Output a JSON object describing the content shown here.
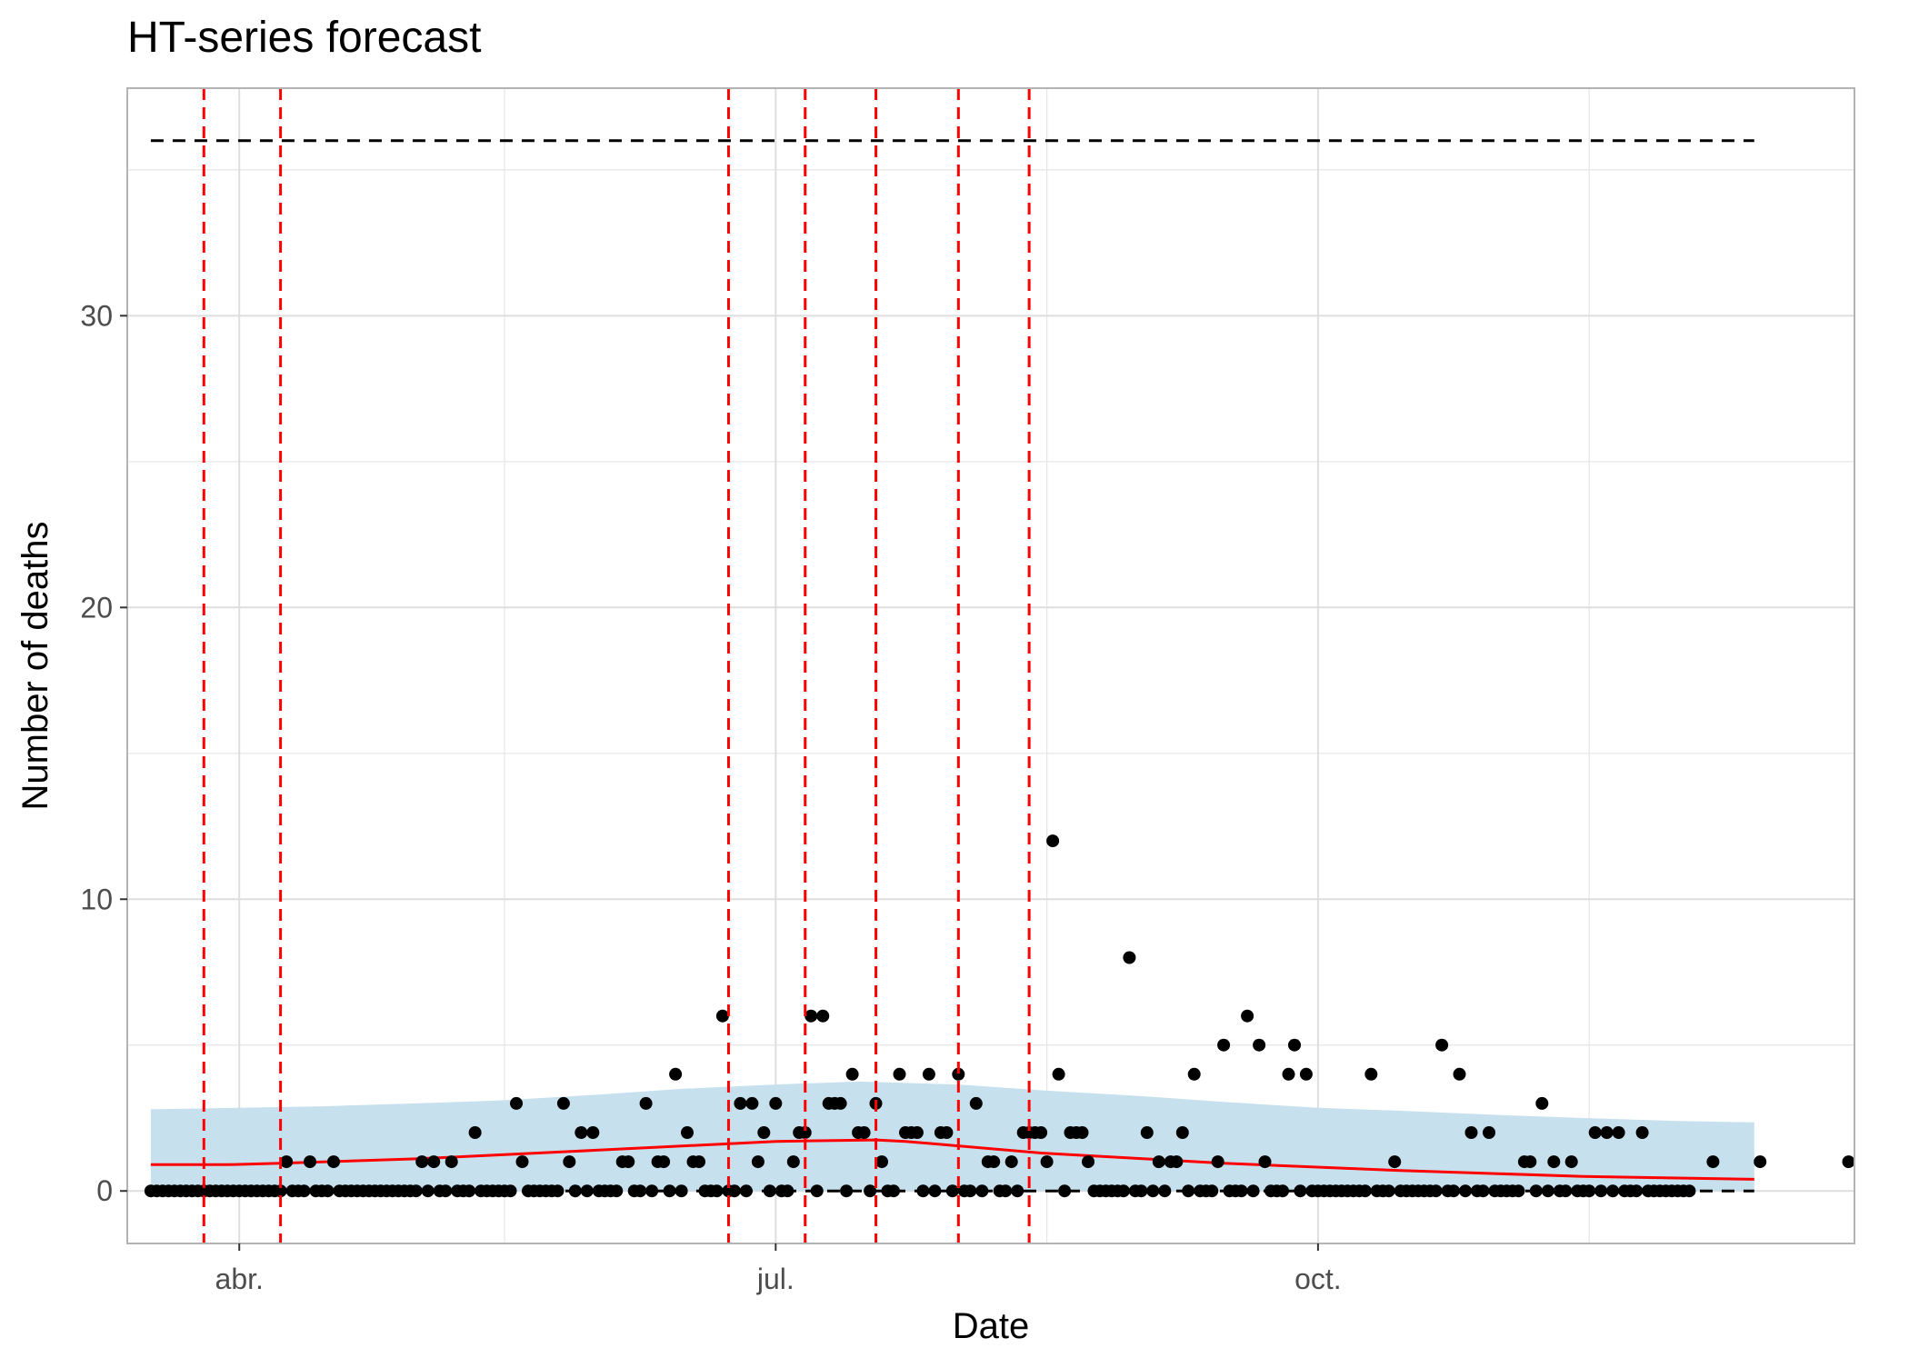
{
  "chart_data": {
    "type": "scatter",
    "title": "HT-series forecast",
    "xlabel": "Date",
    "ylabel": "Number of deaths",
    "x_tick_labels": [
      {
        "date": "2020-04-01",
        "label": "abr."
      },
      {
        "date": "2020-07-01",
        "label": "jul."
      },
      {
        "date": "2020-10-01",
        "label": "oct."
      }
    ],
    "y_ticks": [
      0,
      10,
      20,
      30
    ],
    "xlim": [
      "2020-03-13",
      "2020-12-31"
    ],
    "ylim": [
      -1.8,
      37.8
    ],
    "grid": true,
    "legend": "none",
    "colors": {
      "points": "#000000",
      "trend": "#ff0000",
      "band": "#c6e0ee",
      "event_lines": "#ff0000",
      "reference_lines": "#000000",
      "grid": "#e5e5e5",
      "panel_border": "#b3b3b3"
    },
    "reference_lines": [
      {
        "y": 36,
        "style": "dashed",
        "x_range": [
          "2020-03-17",
          "2020-12-14"
        ]
      },
      {
        "y": 0,
        "style": "dashed",
        "x_range": [
          "2020-03-17",
          "2020-12-14"
        ]
      }
    ],
    "event_lines": [
      "2020-03-26",
      "2020-04-08",
      "2020-06-23",
      "2020-07-06",
      "2020-07-18",
      "2020-08-01",
      "2020-08-13"
    ],
    "trend": {
      "x": [
        "2020-03-17",
        "2020-03-30",
        "2020-04-08",
        "2020-05-01",
        "2020-06-01",
        "2020-07-01",
        "2020-07-18",
        "2020-07-23",
        "2020-08-15",
        "2020-09-15",
        "2020-10-15",
        "2020-11-15",
        "2020-12-14"
      ],
      "y": [
        0.9,
        0.9,
        0.95,
        1.1,
        1.4,
        1.7,
        1.75,
        1.7,
        1.3,
        0.95,
        0.7,
        0.5,
        0.4
      ]
    },
    "band": {
      "x": [
        "2020-03-17",
        "2020-04-01",
        "2020-04-15",
        "2020-05-01",
        "2020-05-15",
        "2020-06-01",
        "2020-06-15",
        "2020-07-01",
        "2020-07-15",
        "2020-08-01",
        "2020-08-15",
        "2020-09-01",
        "2020-09-15",
        "2020-10-01",
        "2020-10-15",
        "2020-11-01",
        "2020-11-15",
        "2020-12-01",
        "2020-12-14"
      ],
      "upper": [
        2.8,
        2.85,
        2.9,
        3.0,
        3.1,
        3.3,
        3.5,
        3.65,
        3.75,
        3.65,
        3.45,
        3.25,
        3.05,
        2.85,
        2.75,
        2.6,
        2.5,
        2.4,
        2.35
      ],
      "lower": [
        0,
        0,
        0,
        0,
        0,
        0,
        0,
        0,
        0,
        0,
        0,
        0,
        0,
        0,
        0,
        0,
        0,
        0,
        0
      ]
    },
    "points_baseline": {
      "from": "2020-03-17",
      "to": "2020-12-03",
      "y": 0
    },
    "points": [
      {
        "x": "2020-04-09",
        "y": 1
      },
      {
        "x": "2020-04-13",
        "y": 1
      },
      {
        "x": "2020-04-17",
        "y": 1
      },
      {
        "x": "2020-05-02",
        "y": 1
      },
      {
        "x": "2020-05-04",
        "y": 1
      },
      {
        "x": "2020-05-07",
        "y": 1
      },
      {
        "x": "2020-05-11",
        "y": 2
      },
      {
        "x": "2020-05-18",
        "y": 3
      },
      {
        "x": "2020-05-19",
        "y": 1
      },
      {
        "x": "2020-05-26",
        "y": 3
      },
      {
        "x": "2020-05-27",
        "y": 1
      },
      {
        "x": "2020-05-29",
        "y": 2
      },
      {
        "x": "2020-05-31",
        "y": 2
      },
      {
        "x": "2020-06-05",
        "y": 1
      },
      {
        "x": "2020-06-06",
        "y": 1
      },
      {
        "x": "2020-06-09",
        "y": 3
      },
      {
        "x": "2020-06-11",
        "y": 1
      },
      {
        "x": "2020-06-12",
        "y": 1
      },
      {
        "x": "2020-06-14",
        "y": 4
      },
      {
        "x": "2020-06-16",
        "y": 2
      },
      {
        "x": "2020-06-17",
        "y": 1
      },
      {
        "x": "2020-06-18",
        "y": 1
      },
      {
        "x": "2020-06-22",
        "y": 6
      },
      {
        "x": "2020-06-25",
        "y": 3
      },
      {
        "x": "2020-06-27",
        "y": 3
      },
      {
        "x": "2020-06-28",
        "y": 1
      },
      {
        "x": "2020-06-29",
        "y": 2
      },
      {
        "x": "2020-07-01",
        "y": 3
      },
      {
        "x": "2020-07-04",
        "y": 1
      },
      {
        "x": "2020-07-05",
        "y": 2
      },
      {
        "x": "2020-07-06",
        "y": 2
      },
      {
        "x": "2020-07-07",
        "y": 6
      },
      {
        "x": "2020-07-09",
        "y": 6
      },
      {
        "x": "2020-07-10",
        "y": 3
      },
      {
        "x": "2020-07-11",
        "y": 3
      },
      {
        "x": "2020-07-12",
        "y": 3
      },
      {
        "x": "2020-07-14",
        "y": 4
      },
      {
        "x": "2020-07-15",
        "y": 2
      },
      {
        "x": "2020-07-16",
        "y": 2
      },
      {
        "x": "2020-07-18",
        "y": 3
      },
      {
        "x": "2020-07-19",
        "y": 1
      },
      {
        "x": "2020-07-22",
        "y": 4
      },
      {
        "x": "2020-07-23",
        "y": 2
      },
      {
        "x": "2020-07-24",
        "y": 2
      },
      {
        "x": "2020-07-25",
        "y": 2
      },
      {
        "x": "2020-07-27",
        "y": 4
      },
      {
        "x": "2020-07-29",
        "y": 2
      },
      {
        "x": "2020-07-30",
        "y": 2
      },
      {
        "x": "2020-08-01",
        "y": 4
      },
      {
        "x": "2020-08-04",
        "y": 3
      },
      {
        "x": "2020-08-06",
        "y": 1
      },
      {
        "x": "2020-08-07",
        "y": 1
      },
      {
        "x": "2020-08-10",
        "y": 1
      },
      {
        "x": "2020-08-12",
        "y": 2
      },
      {
        "x": "2020-08-13",
        "y": 2
      },
      {
        "x": "2020-08-14",
        "y": 2
      },
      {
        "x": "2020-08-15",
        "y": 2
      },
      {
        "x": "2020-08-16",
        "y": 1
      },
      {
        "x": "2020-08-17",
        "y": 12
      },
      {
        "x": "2020-08-18",
        "y": 4
      },
      {
        "x": "2020-08-20",
        "y": 2
      },
      {
        "x": "2020-08-21",
        "y": 2
      },
      {
        "x": "2020-08-22",
        "y": 2
      },
      {
        "x": "2020-08-23",
        "y": 1
      },
      {
        "x": "2020-08-30",
        "y": 8
      },
      {
        "x": "2020-09-02",
        "y": 2
      },
      {
        "x": "2020-09-04",
        "y": 1
      },
      {
        "x": "2020-09-06",
        "y": 1
      },
      {
        "x": "2020-09-07",
        "y": 1
      },
      {
        "x": "2020-09-08",
        "y": 2
      },
      {
        "x": "2020-09-10",
        "y": 4
      },
      {
        "x": "2020-09-14",
        "y": 1
      },
      {
        "x": "2020-09-15",
        "y": 5
      },
      {
        "x": "2020-09-19",
        "y": 6
      },
      {
        "x": "2020-09-21",
        "y": 5
      },
      {
        "x": "2020-09-22",
        "y": 1
      },
      {
        "x": "2020-09-26",
        "y": 4
      },
      {
        "x": "2020-09-27",
        "y": 5
      },
      {
        "x": "2020-09-29",
        "y": 4
      },
      {
        "x": "2020-10-10",
        "y": 4
      },
      {
        "x": "2020-10-14",
        "y": 1
      },
      {
        "x": "2020-10-22",
        "y": 5
      },
      {
        "x": "2020-10-25",
        "y": 4
      },
      {
        "x": "2020-10-27",
        "y": 2
      },
      {
        "x": "2020-10-30",
        "y": 2
      },
      {
        "x": "2020-11-05",
        "y": 1
      },
      {
        "x": "2020-11-06",
        "y": 1
      },
      {
        "x": "2020-11-08",
        "y": 3
      },
      {
        "x": "2020-11-10",
        "y": 1
      },
      {
        "x": "2020-11-13",
        "y": 1
      },
      {
        "x": "2020-11-17",
        "y": 2
      },
      {
        "x": "2020-11-19",
        "y": 2
      },
      {
        "x": "2020-11-21",
        "y": 2
      },
      {
        "x": "2020-11-25",
        "y": 2
      },
      {
        "x": "2020-12-07",
        "y": 1
      },
      {
        "x": "2020-12-15",
        "y": 1
      },
      {
        "x": "2020-12-30",
        "y": 1
      }
    ]
  }
}
